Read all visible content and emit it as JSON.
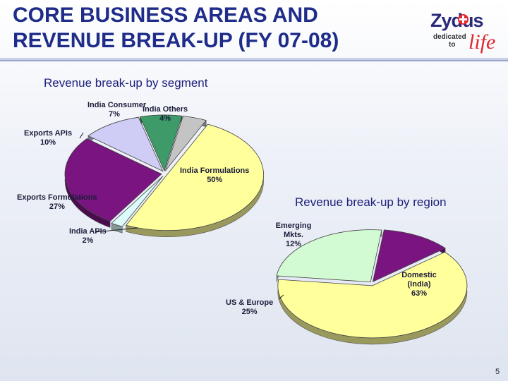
{
  "title": {
    "line1": "CORE BUSINESS AREAS AND",
    "line2": "REVENUE BREAK-UP (FY 07-08)"
  },
  "logo": {
    "name": "Zydus",
    "tag_dedicated": "dedicated",
    "tag_to": "to",
    "tag_life": "life"
  },
  "page_number": "5",
  "colors": {
    "title": "#1f2c8a",
    "chart_title": "#1b1f7a",
    "rule": "#9aa5d0",
    "logo_red": "#e2262c",
    "logo_navy": "#2b2a7a"
  },
  "chart_data": [
    {
      "type": "pie",
      "title": "Revenue break-up by segment",
      "slices": [
        {
          "label": "India Formulations",
          "value": 50,
          "label_text": "50%",
          "color": "#ffff9c"
        },
        {
          "label": "India APIs",
          "value": 2,
          "label_text": "2%",
          "color": "#ddfbfb"
        },
        {
          "label": "Exports Formulations",
          "value": 27,
          "label_text": "27%",
          "color": "#7a1480"
        },
        {
          "label": "Exports APIs",
          "value": 10,
          "label_text": "10%",
          "color": "#cfccf6"
        },
        {
          "label": "India Consumer",
          "value": 7,
          "label_text": "7%",
          "color": "#3e9a68"
        },
        {
          "label": "India Others",
          "value": 4,
          "label_text": "4%",
          "color": "#c4c4c4"
        }
      ]
    },
    {
      "type": "pie",
      "title": "Revenue break-up by region",
      "slices": [
        {
          "label": "Domestic (India)",
          "value": 63,
          "label_text": "63%",
          "color": "#ffff9c"
        },
        {
          "label": "US & Europe",
          "value": 25,
          "label_text": "25%",
          "color": "#d3fbd3"
        },
        {
          "label": "Emerging Mkts.",
          "value": 12,
          "label_text": "12%",
          "color": "#7a1480"
        }
      ]
    }
  ]
}
